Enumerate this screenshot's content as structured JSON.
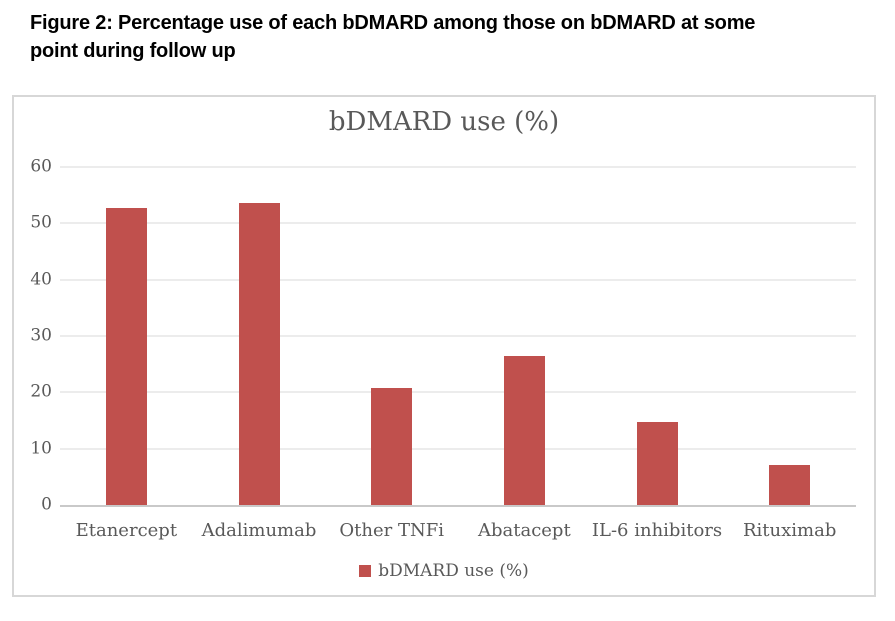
{
  "caption": {
    "line1": "Figure 2: Percentage use of each bDMARD among those on bDMARD at some",
    "line2": "point during follow up"
  },
  "chart_data": {
    "type": "bar",
    "title": "bDMARD use (%)",
    "categories": [
      "Etanercept",
      "Adalimumab",
      "Other TNFi",
      "Abatacept",
      "IL-6 inhibitors",
      "Rituximab"
    ],
    "values": [
      52.8,
      53.7,
      20.8,
      26.5,
      14.7,
      7.1
    ],
    "series_name": "bDMARD use (%)",
    "legend_label": "bDMARD use (%)",
    "xlabel": "",
    "ylabel": "",
    "ylim": [
      0,
      60
    ],
    "yticks": [
      0,
      10,
      20,
      30,
      40,
      50,
      60
    ],
    "grid": true,
    "legend_position": "bottom",
    "bar_color": "#C0504D",
    "text_color": "#595959",
    "gridline_color": "#D9D9D9",
    "caption_color": "#000000"
  }
}
